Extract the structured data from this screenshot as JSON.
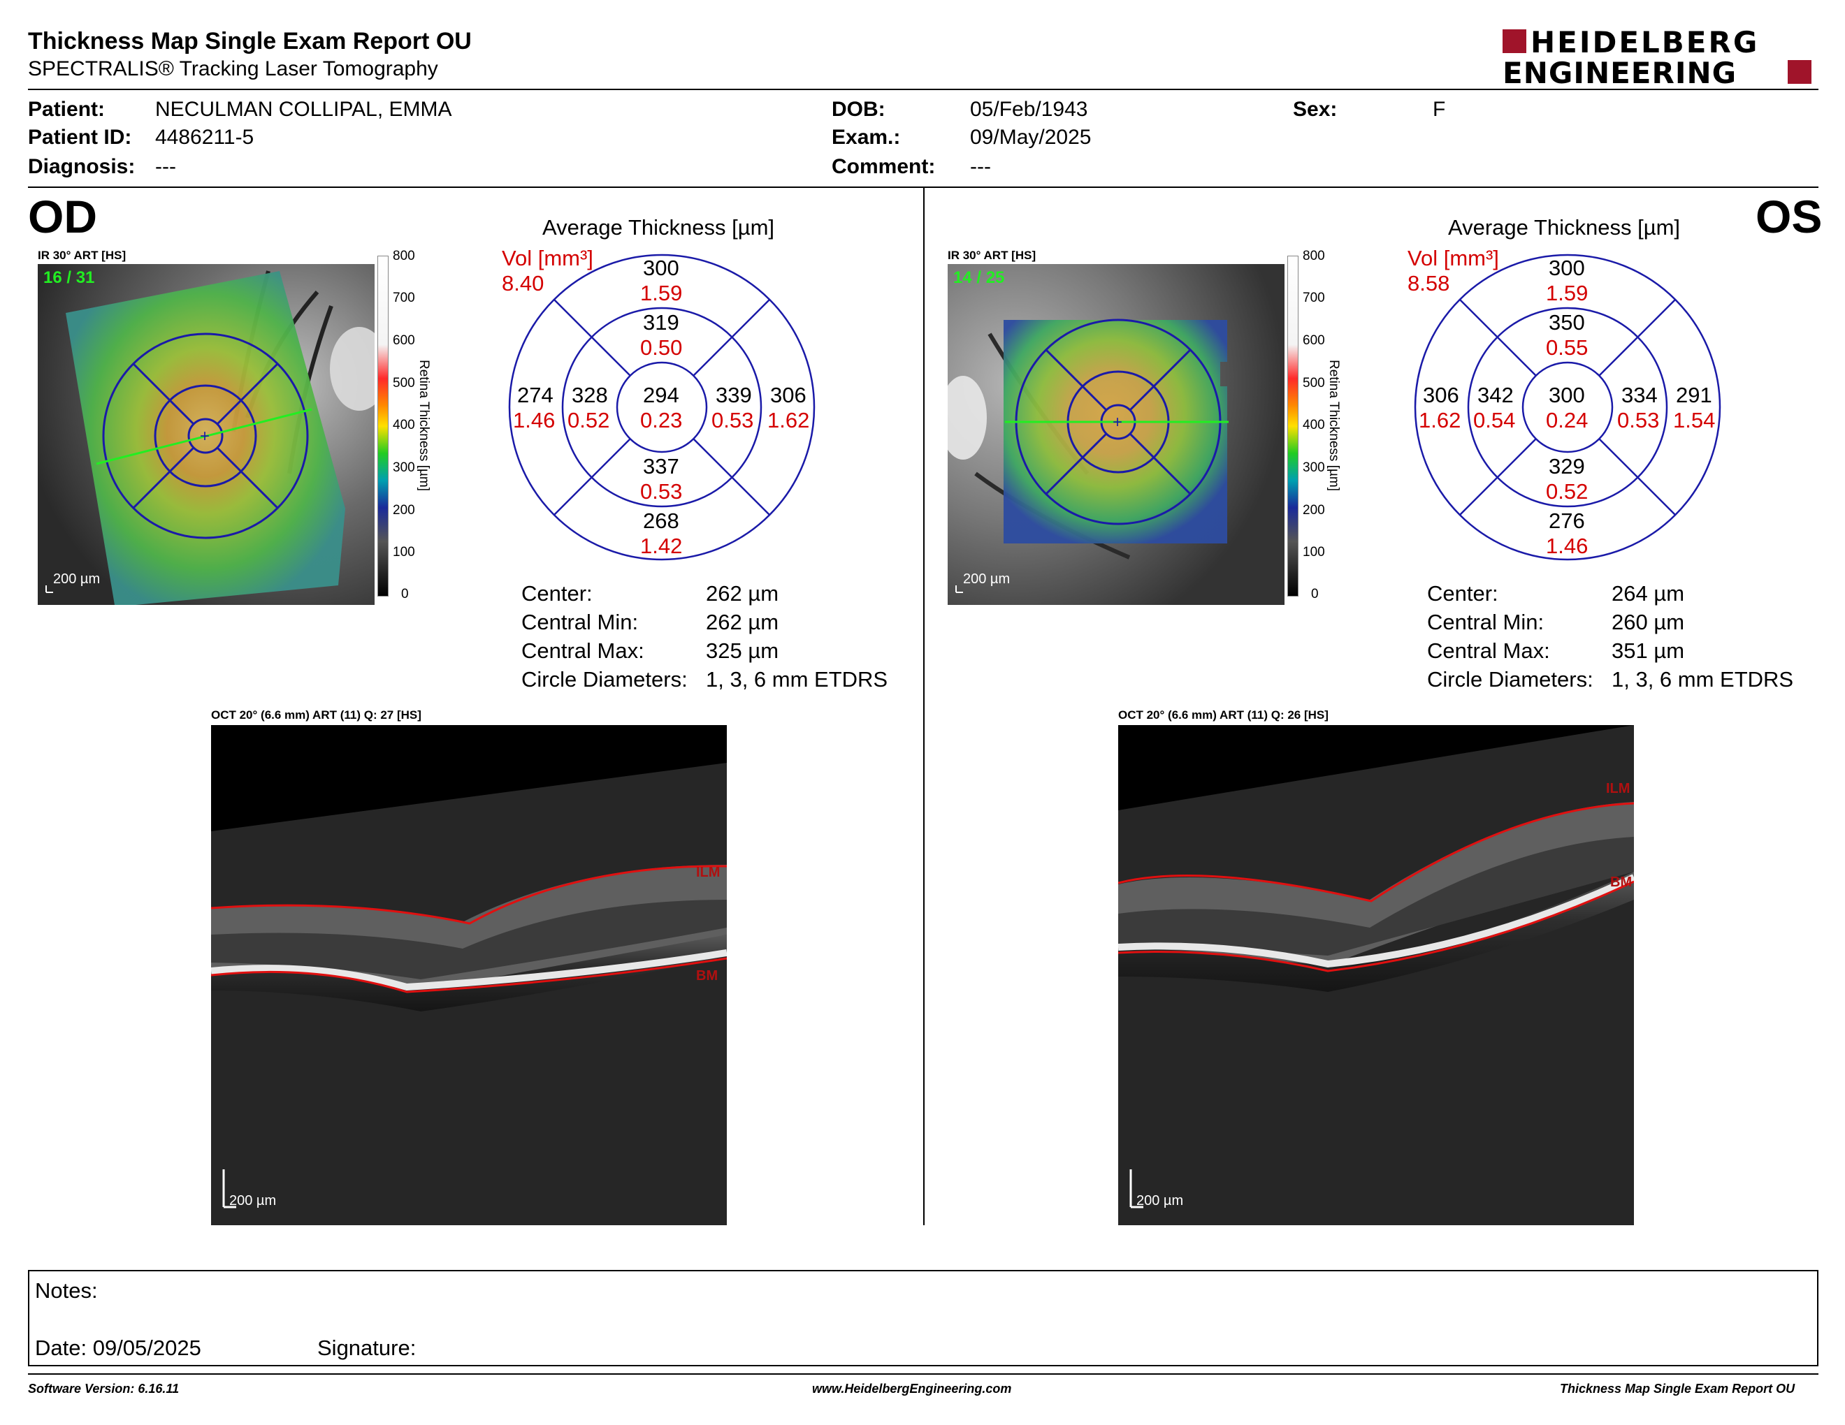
{
  "header": {
    "title": "Thickness Map Single Exam Report OU",
    "subtitle": "SPECTRALIS® Tracking Laser Tomography",
    "logo_line1": "HEIDELBERG",
    "logo_line2": "ENGINEERING"
  },
  "patient": {
    "patient_label": "Patient:",
    "patient_value": "NECULMAN COLLIPAL, EMMA",
    "id_label": "Patient ID:",
    "id_value": "4486211-5",
    "diagnosis_label": "Diagnosis:",
    "diagnosis_value": "---",
    "dob_label": "DOB:",
    "dob_value": "05/Feb/1943",
    "exam_label": "Exam.:",
    "exam_value": "09/May/2025",
    "comment_label": "Comment:",
    "comment_value": "---",
    "sex_label": "Sex:",
    "sex_value": "F"
  },
  "colorbar": {
    "ticks": [
      "800",
      "700",
      "600",
      "500",
      "400",
      "300",
      "200",
      "100",
      "0"
    ],
    "title": "Retina Thickness [µm]"
  },
  "od": {
    "eye": "OD",
    "ir_label": "IR 30° ART [HS]",
    "frames": "16 / 31",
    "scale": "200 µm",
    "avg_title": "Average Thickness [µm]",
    "vol_label": "Vol [mm³]",
    "vol_value": "8.40",
    "etdrs": {
      "outer_sup": "300",
      "outer_sup_vol": "1.59",
      "inner_sup": "319",
      "inner_sup_vol": "0.50",
      "outer_temp": "274",
      "outer_temp_vol": "1.46",
      "inner_temp": "328",
      "inner_temp_vol": "0.52",
      "center": "294",
      "center_vol": "0.23",
      "inner_nas": "339",
      "inner_nas_vol": "0.53",
      "outer_nas": "306",
      "outer_nas_vol": "1.62",
      "inner_inf": "337",
      "inner_inf_vol": "0.53",
      "outer_inf": "268",
      "outer_inf_vol": "1.42"
    },
    "stats": {
      "center_label": "Center:",
      "center_value": "262 µm",
      "min_label": "Central Min:",
      "min_value": "262 µm",
      "max_label": "Central Max:",
      "max_value": "325 µm",
      "circ_label": "Circle Diameters:",
      "circ_value": "1, 3, 6 mm ETDRS"
    },
    "oct_label": "OCT 20° (6.6 mm) ART (11) Q: 27 [HS]",
    "oct_scale": "200 µm",
    "ilm": "ILM",
    "bm": "BM"
  },
  "os": {
    "eye": "OS",
    "ir_label": "IR 30° ART [HS]",
    "frames": "14 / 25",
    "scale": "200 µm",
    "avg_title": "Average Thickness [µm]",
    "vol_label": "Vol [mm³]",
    "vol_value": "8.58",
    "etdrs": {
      "outer_sup": "300",
      "outer_sup_vol": "1.59",
      "inner_sup": "350",
      "inner_sup_vol": "0.55",
      "outer_temp": "306",
      "outer_temp_vol": "1.62",
      "inner_temp": "342",
      "inner_temp_vol": "0.54",
      "center": "300",
      "center_vol": "0.24",
      "inner_nas": "334",
      "inner_nas_vol": "0.53",
      "outer_nas": "291",
      "outer_nas_vol": "1.54",
      "inner_inf": "329",
      "inner_inf_vol": "0.52",
      "outer_inf": "276",
      "outer_inf_vol": "1.46"
    },
    "stats": {
      "center_label": "Center:",
      "center_value": "264 µm",
      "min_label": "Central Min:",
      "min_value": "260 µm",
      "max_label": "Central Max:",
      "max_value": "351 µm",
      "circ_label": "Circle Diameters:",
      "circ_value": "1, 3, 6 mm ETDRS"
    },
    "oct_label": "OCT 20° (6.6 mm) ART (11) Q: 26 [HS]",
    "oct_scale": "200 µm",
    "ilm": "ILM",
    "bm": "BM"
  },
  "notes": {
    "notes_label": "Notes:",
    "date_label": "Date: 09/05/2025",
    "signature_label": "Signature:"
  },
  "footer": {
    "software": "Software Version: 6.16.11",
    "website": "www.HeidelbergEngineering.com",
    "report": "Thickness Map Single Exam Report OU"
  },
  "colors": {
    "etdrs_ring": "#1a1aa8",
    "volume_red": "#d40000",
    "brand_red": "#a0142a",
    "frame_green": "#22ee22"
  }
}
